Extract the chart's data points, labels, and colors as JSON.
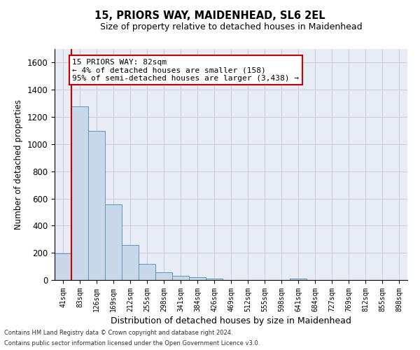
{
  "title1": "15, PRIORS WAY, MAIDENHEAD, SL6 2EL",
  "title2": "Size of property relative to detached houses in Maidenhead",
  "xlabel": "Distribution of detached houses by size in Maidenhead",
  "ylabel": "Number of detached properties",
  "annotation_line1": "15 PRIORS WAY: 82sqm",
  "annotation_line2": "← 4% of detached houses are smaller (158)",
  "annotation_line3": "95% of semi-detached houses are larger (3,438) →",
  "bar_color": "#c8d8e8",
  "bar_edge_color": "#5599bb",
  "annotation_box_edge": "#cc0000",
  "property_line_color": "#cc0000",
  "categories": [
    "41sqm",
    "83sqm",
    "126sqm",
    "169sqm",
    "212sqm",
    "255sqm",
    "298sqm",
    "341sqm",
    "384sqm",
    "426sqm",
    "469sqm",
    "512sqm",
    "555sqm",
    "598sqm",
    "641sqm",
    "684sqm",
    "727sqm",
    "769sqm",
    "812sqm",
    "855sqm",
    "898sqm"
  ],
  "values": [
    195,
    1280,
    1095,
    555,
    260,
    120,
    55,
    30,
    20,
    10,
    0,
    0,
    0,
    0,
    10,
    0,
    0,
    0,
    0,
    0,
    0
  ],
  "ylim": [
    0,
    1700
  ],
  "yticks": [
    0,
    200,
    400,
    600,
    800,
    1000,
    1200,
    1400,
    1600
  ],
  "footnote1": "Contains HM Land Registry data © Crown copyright and database right 2024.",
  "footnote2": "Contains public sector information licensed under the Open Government Licence v3.0.",
  "grid_color": "#ccccdd",
  "background_color": "#e8ecf5"
}
